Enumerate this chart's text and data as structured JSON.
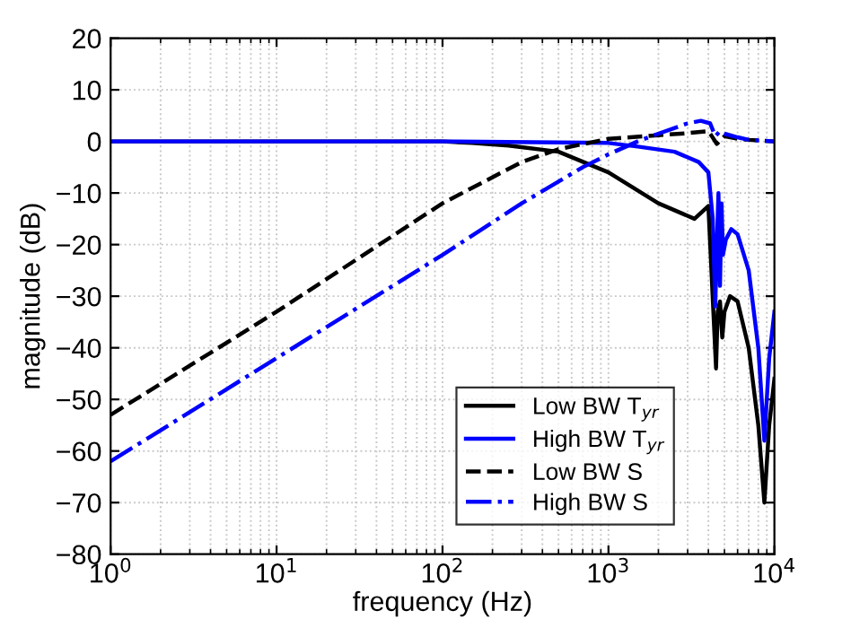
{
  "chart_data": {
    "type": "line",
    "xlabel": "frequency (Hz)",
    "ylabel": "magnitude (dB)",
    "log": "x",
    "xlim": [
      1,
      10000
    ],
    "ylim": [
      -80,
      20
    ],
    "xticks": [
      {
        "value": 1,
        "label": "10$^{0}$"
      },
      {
        "value": 10,
        "label": "10$^{1}$"
      },
      {
        "value": 100,
        "label": "10$^{2}$"
      },
      {
        "value": 1000,
        "label": "10$^{3}$"
      },
      {
        "value": 10000,
        "label": "10$^{4}$"
      }
    ],
    "yticks": [
      -80,
      -70,
      -60,
      -50,
      -40,
      -30,
      -20,
      -10,
      0,
      10,
      20
    ],
    "grid": true,
    "legend": "bottom right",
    "marker": "none",
    "series": [
      {
        "name": "Low BW T$_{yr}$",
        "color": "#000000",
        "line_style": "solid",
        "x": [
          1,
          10,
          100,
          150,
          250,
          500,
          1000,
          2000,
          3300,
          4000,
          4450,
          4550,
          4700,
          4850,
          5000,
          5400,
          6000,
          7000,
          8000,
          8700,
          9300,
          10000
        ],
        "values": [
          0,
          0,
          0,
          -0.3,
          -0.8,
          -2,
          -6,
          -12,
          -15,
          -12.5,
          -44,
          -33,
          -31,
          -38,
          -33,
          -30,
          -31,
          -40,
          -55,
          -70,
          -55,
          -46
        ]
      },
      {
        "name": "High BW T$_{yr}$",
        "color": "#0000ff",
        "line_style": "solid",
        "x": [
          1,
          10,
          100,
          1000,
          1500,
          2500,
          3500,
          4000,
          4250,
          4400,
          4500,
          4600,
          4700,
          4800,
          4900,
          5100,
          5500,
          6000,
          7000,
          8000,
          8700,
          9300,
          10000
        ],
        "values": [
          0,
          0,
          0,
          -0.3,
          -1,
          -2,
          -4,
          -6,
          -15,
          -32,
          -20,
          -10,
          -28,
          -12,
          -22,
          -19,
          -17,
          -18,
          -25,
          -40,
          -58,
          -42,
          -33
        ]
      },
      {
        "name": "Low BW S",
        "color": "#000000",
        "line_style": "dashed",
        "x": [
          1,
          10,
          100,
          300,
          500,
          1000,
          2000,
          3000,
          4000,
          4300,
          4500,
          5000,
          6000,
          7000,
          10000
        ],
        "values": [
          -53,
          -33,
          -12,
          -4,
          -1.5,
          0.5,
          1.2,
          1.6,
          2,
          0.5,
          -0.5,
          1,
          0.5,
          0.3,
          0
        ]
      },
      {
        "name": "High BW S",
        "color": "#0000ff",
        "line_style": "dashdot",
        "x": [
          1,
          10,
          100,
          300,
          700,
          1000,
          1500,
          2000,
          3000,
          3600,
          4100,
          4400,
          4700,
          5000,
          6000,
          7000,
          10000
        ],
        "values": [
          -62,
          -42,
          -22,
          -12,
          -5,
          -2.5,
          0,
          1.5,
          3.5,
          4,
          3.5,
          1,
          2,
          1.5,
          0.8,
          0.3,
          0
        ]
      }
    ]
  }
}
